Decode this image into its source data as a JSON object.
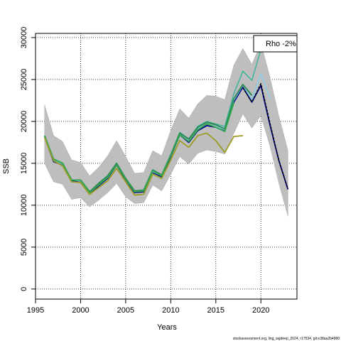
{
  "chart_data": {
    "type": "line",
    "xlabel": "Years",
    "ylabel": "SSB",
    "xlim": [
      1995,
      2024
    ],
    "ylim": [
      -1200,
      30500
    ],
    "x_ticks": [
      1995,
      2000,
      2005,
      2010,
      2015,
      2020
    ],
    "y_ticks": [
      0,
      5000,
      10000,
      15000,
      20000,
      25000,
      30000
    ],
    "grid": true,
    "legend_text": "Rho -2%",
    "legend_position": "top-right",
    "confidence_band": {
      "x": [
        1996,
        1997,
        1998,
        1999,
        2000,
        2001,
        2002,
        2003,
        2004,
        2005,
        2006,
        2007,
        2008,
        2009,
        2010,
        2011,
        2012,
        2013,
        2014,
        2015,
        2016,
        2017,
        2018,
        2019,
        2020,
        2021,
        2022,
        2023
      ],
      "lower": [
        15000,
        12800,
        12500,
        10700,
        10900,
        9800,
        10600,
        11500,
        12600,
        11000,
        10200,
        10300,
        12400,
        11700,
        13700,
        15800,
        14900,
        16200,
        16600,
        16400,
        16100,
        18600,
        20900,
        19200,
        20700,
        17100,
        12600,
        8700
      ],
      "upper": [
        22000,
        18300,
        17600,
        15400,
        15100,
        13500,
        14500,
        15900,
        17700,
        15800,
        13800,
        13900,
        16500,
        15900,
        18900,
        21500,
        20400,
        22100,
        23100,
        23000,
        22600,
        26700,
        28700,
        26800,
        29300,
        25300,
        20600,
        16500
      ]
    },
    "series": [
      {
        "color": "#00008b",
        "width": 1.8,
        "x": [
          1996,
          1997,
          1998,
          1999,
          2000,
          2001,
          2002,
          2003,
          2004,
          2005,
          2006,
          2007,
          2008,
          2009,
          2010,
          2011,
          2012,
          2013,
          2014,
          2015,
          2016,
          2017,
          2018,
          2019,
          2020,
          2021,
          2022,
          2023
        ],
        "y": [
          18200,
          15200,
          14800,
          12900,
          12900,
          11400,
          12300,
          13200,
          14800,
          13000,
          11500,
          11600,
          13900,
          13400,
          15800,
          18400,
          17500,
          18900,
          19500,
          19300,
          18900,
          22300,
          24100,
          22300,
          24300,
          19600,
          15300,
          11900
        ]
      },
      {
        "color": "#87ceeb",
        "width": 1.5,
        "x": [
          1996,
          1997,
          1998,
          1999,
          2000,
          2001,
          2002,
          2003,
          2004,
          2005,
          2006,
          2007,
          2008,
          2009,
          2010,
          2011,
          2012,
          2013,
          2014,
          2015,
          2016,
          2017,
          2018,
          2019,
          2020,
          2021
        ],
        "y": [
          18200,
          15400,
          14900,
          13000,
          12900,
          11500,
          12400,
          13300,
          14900,
          13100,
          11600,
          11700,
          14000,
          13500,
          15900,
          18500,
          17700,
          19100,
          19700,
          19400,
          19000,
          22500,
          24300,
          22600,
          25700,
          22800
        ]
      },
      {
        "color": "#3cb39a",
        "width": 1.5,
        "x": [
          1996,
          1997,
          1998,
          1999,
          2000,
          2001,
          2002,
          2003,
          2004,
          2005,
          2006,
          2007,
          2008,
          2009,
          2010,
          2011,
          2012,
          2013,
          2014,
          2015,
          2016,
          2017,
          2018,
          2019,
          2020
        ],
        "y": [
          18200,
          15500,
          15000,
          13000,
          13000,
          11600,
          12500,
          13400,
          15000,
          13200,
          11700,
          11800,
          14100,
          13600,
          16000,
          18700,
          17900,
          19400,
          20000,
          19700,
          19400,
          23300,
          26000,
          24900,
          28600
        ]
      },
      {
        "color": "#2e8b57",
        "width": 2.0,
        "x": [
          1996,
          1997,
          1998,
          1999,
          2000,
          2001,
          2002,
          2003,
          2004,
          2005,
          2006,
          2007,
          2008,
          2009,
          2010,
          2011,
          2012,
          2013,
          2014,
          2015,
          2016,
          2017,
          2018,
          2019
        ],
        "y": [
          18300,
          15500,
          15000,
          13000,
          13000,
          11600,
          12600,
          13500,
          15000,
          13200,
          11700,
          11800,
          14200,
          13600,
          16000,
          18600,
          17900,
          19300,
          19900,
          19600,
          19100,
          22700,
          24400,
          23100
        ]
      },
      {
        "color": "#32a84e",
        "width": 1.8,
        "x": [
          1996,
          1997,
          1998,
          1999,
          2000,
          2001,
          2002,
          2003,
          2004,
          2005,
          2006,
          2007,
          2008,
          2009,
          2010,
          2011,
          2012,
          2013,
          2014,
          2015,
          2016,
          2017
        ],
        "y": [
          18300,
          15500,
          15000,
          13000,
          13000,
          11500,
          12400,
          13300,
          14800,
          13100,
          11600,
          11700,
          14100,
          13500,
          15900,
          18400,
          17600,
          19000,
          19700,
          19300,
          18800,
          22200
        ]
      },
      {
        "color": "#9b9b26",
        "width": 1.8,
        "x": [
          1996,
          1997,
          1998,
          1999,
          2000,
          2001,
          2002,
          2003,
          2004,
          2005,
          2006,
          2007,
          2008,
          2009,
          2010,
          2011,
          2012,
          2013,
          2014,
          2015,
          2016,
          2017,
          2018
        ],
        "y": [
          18100,
          15300,
          14700,
          12800,
          12700,
          11300,
          12100,
          12900,
          14400,
          12800,
          11200,
          11300,
          13700,
          13200,
          15400,
          17700,
          16900,
          18300,
          18600,
          17700,
          16300,
          18200,
          18300
        ]
      },
      {
        "color": "#000000",
        "width": 1.5,
        "dashed": true,
        "x": [
          2018,
          2019,
          2020,
          2021,
          2022,
          2023
        ],
        "y": [
          24000,
          22300,
          24500,
          19800,
          15300,
          11900
        ]
      }
    ]
  },
  "footer": "stockassessment.org, ling_wgdeep_2024, r17534, git:e38aa2b4980"
}
